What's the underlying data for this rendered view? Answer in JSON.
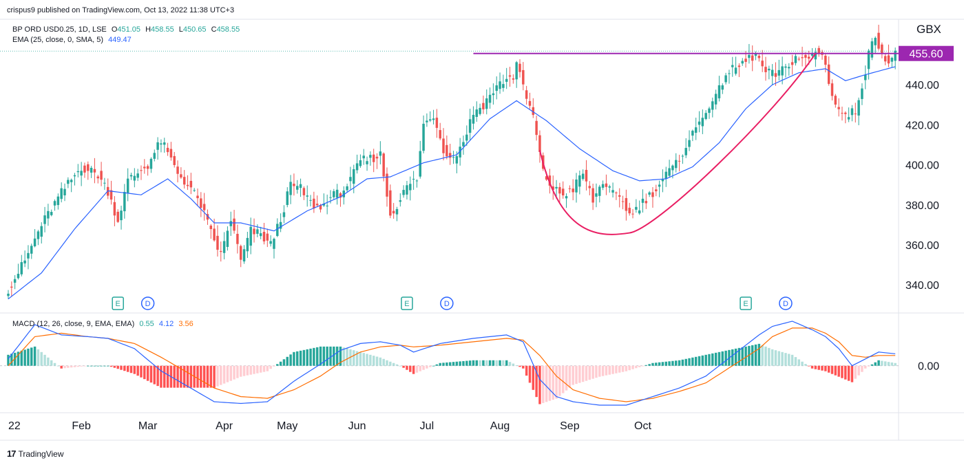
{
  "header": {
    "publisher": "crispus9 published on TradingView.com, Oct 13, 2022 11:38 UTC+3"
  },
  "legend": {
    "symbol": "BP ORD USD0.25, 1D, LSE",
    "o_label": "O",
    "o_value": "451.05",
    "h_label": "H",
    "h_value": "458.55",
    "l_label": "L",
    "l_value": "450.65",
    "c_label": "C",
    "c_value": "458.55",
    "ema_label": "EMA (25, close, 0, SMA, 5)",
    "ema_value": "449.47"
  },
  "macd_legend": {
    "label": "MACD (12, 26, close, 9, EMA, EMA)",
    "hist": "0.55",
    "macd": "4.12",
    "signal": "3.56"
  },
  "currency": "GBX",
  "resistance_label": "455.60",
  "footer": {
    "brand": "TradingView"
  },
  "colors": {
    "up": "#26a69a",
    "down": "#ef5350",
    "ema": "#2962ff",
    "signal": "#ff6d00",
    "resistance": "#9c27b0",
    "cup": "#e91e63",
    "hist_up": "#26a69a",
    "hist_up_light": "#b2dfdb",
    "hist_down": "#ff5252",
    "hist_down_light": "#ffcdd2"
  },
  "chart_data": {
    "type": "candlestick",
    "title": "BP ORD USD0.25, 1D, LSE",
    "x": [
      "2022-01-03",
      "2022-10-13"
    ],
    "x_ticks": [
      "2022",
      "Feb",
      "Mar",
      "Apr",
      "May",
      "Jun",
      "Jul",
      "Aug",
      "Sep",
      "Oct"
    ],
    "y_ticks": [
      340.0,
      360.0,
      380.0,
      400.0,
      420.0,
      440.0
    ],
    "ylim": [
      326,
      472
    ],
    "ylabel": "GBX",
    "resistance": 455.6,
    "close_anchors": [
      [
        0,
        338
      ],
      [
        5,
        352
      ],
      [
        10,
        370
      ],
      [
        16,
        386
      ],
      [
        22,
        399
      ],
      [
        27,
        395
      ],
      [
        30,
        387
      ],
      [
        33,
        372
      ],
      [
        36,
        392
      ],
      [
        42,
        400
      ],
      [
        46,
        412
      ],
      [
        51,
        396
      ],
      [
        55,
        388
      ],
      [
        58,
        380
      ],
      [
        61,
        366
      ],
      [
        64,
        355
      ],
      [
        67,
        373
      ],
      [
        70,
        352
      ],
      [
        73,
        367
      ],
      [
        76,
        365
      ],
      [
        79,
        360
      ],
      [
        82,
        373
      ],
      [
        85,
        390
      ],
      [
        88,
        388
      ],
      [
        91,
        381
      ],
      [
        94,
        378
      ],
      [
        97,
        384
      ],
      [
        100,
        386
      ],
      [
        103,
        392
      ],
      [
        106,
        402
      ],
      [
        109,
        403
      ],
      [
        112,
        405
      ],
      [
        115,
        375
      ],
      [
        117,
        380
      ],
      [
        120,
        389
      ],
      [
        123,
        393
      ],
      [
        125,
        420
      ],
      [
        128,
        425
      ],
      [
        131,
        408
      ],
      [
        134,
        403
      ],
      [
        137,
        412
      ],
      [
        140,
        426
      ],
      [
        143,
        430
      ],
      [
        146,
        437
      ],
      [
        149,
        442
      ],
      [
        152,
        444
      ],
      [
        153,
        452
      ],
      [
        155,
        438
      ],
      [
        158,
        424
      ],
      [
        161,
        396
      ],
      [
        164,
        388
      ],
      [
        167,
        385
      ],
      [
        170,
        388
      ],
      [
        173,
        396
      ],
      [
        176,
        382
      ],
      [
        179,
        392
      ],
      [
        182,
        385
      ],
      [
        185,
        382
      ],
      [
        187,
        375
      ],
      [
        189,
        378
      ],
      [
        192,
        383
      ],
      [
        195,
        388
      ],
      [
        198,
        395
      ],
      [
        201,
        400
      ],
      [
        204,
        410
      ],
      [
        207,
        418
      ],
      [
        210,
        428
      ],
      [
        213,
        433
      ],
      [
        216,
        446
      ],
      [
        219,
        448
      ],
      [
        222,
        452
      ],
      [
        225,
        455
      ],
      [
        228,
        446
      ],
      [
        231,
        445
      ],
      [
        234,
        448
      ],
      [
        237,
        454
      ],
      [
        240,
        452
      ],
      [
        243,
        456
      ],
      [
        245,
        456
      ],
      [
        247,
        442
      ],
      [
        249,
        430
      ],
      [
        252,
        424
      ],
      [
        255,
        427
      ],
      [
        257,
        440
      ],
      [
        259,
        455
      ],
      [
        261,
        465
      ],
      [
        263,
        456
      ],
      [
        265,
        451
      ],
      [
        267,
        455
      ]
    ],
    "ema_anchors": [
      [
        0,
        333
      ],
      [
        10,
        346
      ],
      [
        20,
        368
      ],
      [
        30,
        387
      ],
      [
        40,
        385
      ],
      [
        48,
        393
      ],
      [
        55,
        383
      ],
      [
        62,
        371
      ],
      [
        70,
        371
      ],
      [
        80,
        367
      ],
      [
        90,
        377
      ],
      [
        100,
        384
      ],
      [
        108,
        393
      ],
      [
        115,
        394
      ],
      [
        125,
        401
      ],
      [
        135,
        405
      ],
      [
        145,
        423
      ],
      [
        153,
        432
      ],
      [
        162,
        422
      ],
      [
        172,
        408
      ],
      [
        182,
        397
      ],
      [
        190,
        392
      ],
      [
        198,
        393
      ],
      [
        206,
        399
      ],
      [
        214,
        411
      ],
      [
        222,
        428
      ],
      [
        230,
        440
      ],
      [
        238,
        446
      ],
      [
        246,
        448
      ],
      [
        252,
        442
      ],
      [
        258,
        445
      ],
      [
        267,
        449
      ]
    ],
    "macd_anchors": [
      [
        0,
        4
      ],
      [
        8,
        24
      ],
      [
        16,
        18
      ],
      [
        24,
        17
      ],
      [
        30,
        16
      ],
      [
        38,
        10
      ],
      [
        46,
        -3
      ],
      [
        54,
        -12
      ],
      [
        62,
        -21
      ],
      [
        70,
        -22
      ],
      [
        78,
        -21
      ],
      [
        86,
        -9
      ],
      [
        94,
        1
      ],
      [
        100,
        9
      ],
      [
        106,
        13
      ],
      [
        112,
        14
      ],
      [
        118,
        12
      ],
      [
        122,
        8
      ],
      [
        130,
        13
      ],
      [
        140,
        16
      ],
      [
        150,
        18
      ],
      [
        155,
        14
      ],
      [
        160,
        -8
      ],
      [
        165,
        -18
      ],
      [
        170,
        -21
      ],
      [
        178,
        -23
      ],
      [
        186,
        -23
      ],
      [
        194,
        -18
      ],
      [
        202,
        -13
      ],
      [
        210,
        -6
      ],
      [
        218,
        6
      ],
      [
        226,
        18
      ],
      [
        230,
        23
      ],
      [
        236,
        26
      ],
      [
        242,
        21
      ],
      [
        246,
        17
      ],
      [
        250,
        10
      ],
      [
        254,
        0
      ],
      [
        258,
        4
      ],
      [
        262,
        8
      ],
      [
        267,
        7
      ]
    ],
    "signal_anchors": [
      [
        0,
        0
      ],
      [
        8,
        17
      ],
      [
        16,
        19
      ],
      [
        24,
        17
      ],
      [
        30,
        16
      ],
      [
        38,
        13
      ],
      [
        46,
        5
      ],
      [
        54,
        -4
      ],
      [
        62,
        -13
      ],
      [
        70,
        -18
      ],
      [
        78,
        -19
      ],
      [
        86,
        -14
      ],
      [
        94,
        -6
      ],
      [
        100,
        2
      ],
      [
        106,
        8
      ],
      [
        112,
        11
      ],
      [
        118,
        12
      ],
      [
        122,
        11
      ],
      [
        130,
        12
      ],
      [
        140,
        14
      ],
      [
        150,
        16
      ],
      [
        155,
        15
      ],
      [
        160,
        6
      ],
      [
        165,
        -6
      ],
      [
        170,
        -14
      ],
      [
        178,
        -19
      ],
      [
        186,
        -21
      ],
      [
        194,
        -19
      ],
      [
        202,
        -15
      ],
      [
        210,
        -10
      ],
      [
        218,
        0
      ],
      [
        226,
        10
      ],
      [
        230,
        17
      ],
      [
        236,
        22
      ],
      [
        242,
        22
      ],
      [
        246,
        19
      ],
      [
        250,
        14
      ],
      [
        254,
        6
      ],
      [
        258,
        5
      ],
      [
        262,
        6
      ],
      [
        267,
        6
      ]
    ],
    "macd_ylim": [
      -25,
      28
    ],
    "macd_y_ticks": [
      0.0
    ],
    "events": [
      {
        "type": "E",
        "day": 33
      },
      {
        "type": "D",
        "day": 42
      },
      {
        "type": "E",
        "day": 120
      },
      {
        "type": "D",
        "day": 132
      },
      {
        "type": "E",
        "day": 222
      },
      {
        "type": "D",
        "day": 234
      }
    ],
    "cup_pattern": {
      "start_day": 160,
      "bottom_day": 187,
      "end_day": 243
    }
  }
}
